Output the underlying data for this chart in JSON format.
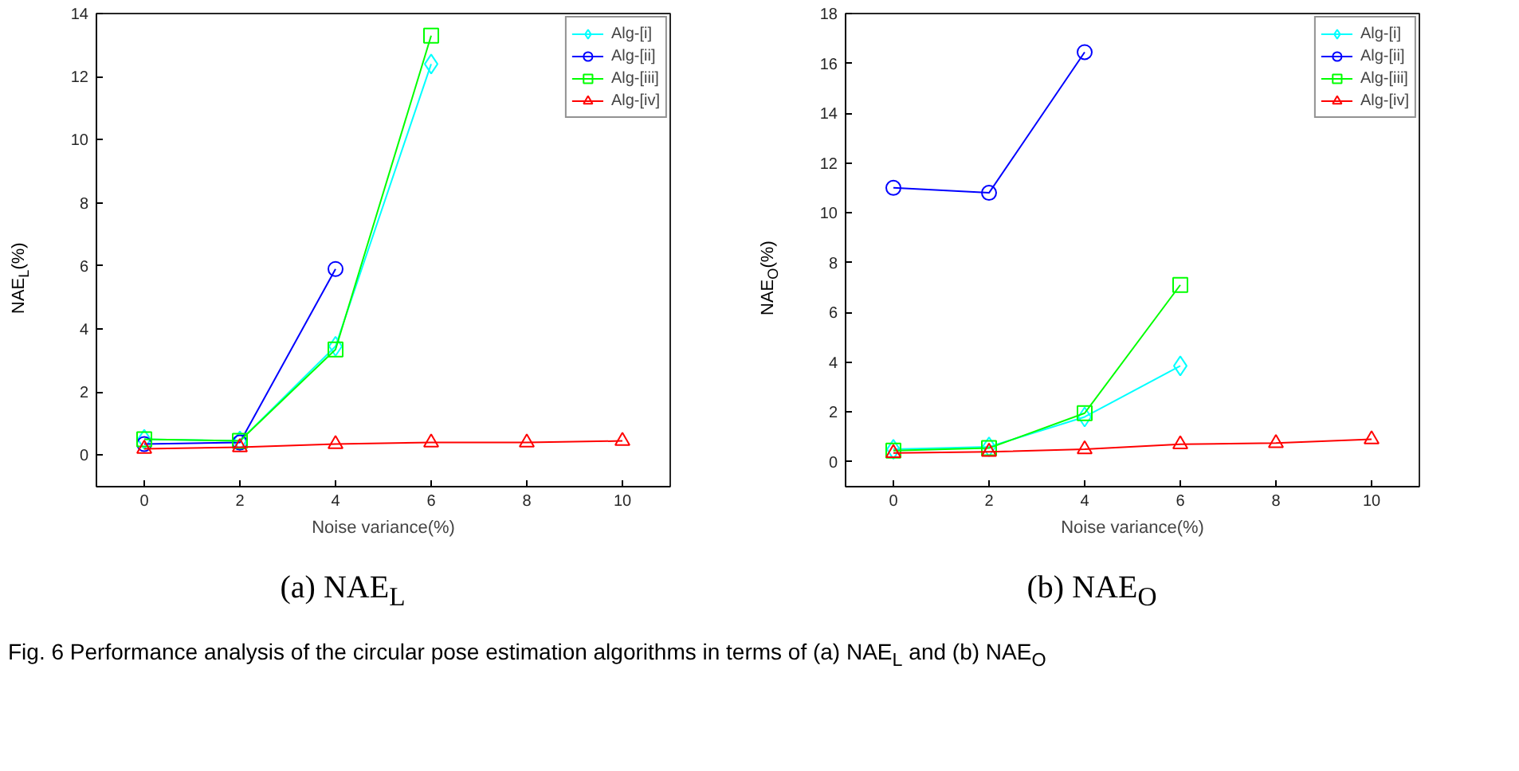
{
  "chart_data": [
    {
      "type": "line",
      "title": "(a) NAE$_{L}$",
      "xlabel": "Noise variance(%)",
      "ylabel": "NAE$_{L}$(%)",
      "xlim": [
        -1,
        11
      ],
      "xticks": [
        0,
        2,
        4,
        6,
        8,
        10
      ],
      "ylim": [
        -1,
        14
      ],
      "yticks": [
        0,
        2,
        4,
        6,
        8,
        10,
        12,
        14
      ],
      "grid": false,
      "legend": "top right",
      "line_style": "solid",
      "annotations": [
        "Fig. 6  Performance analysis of the circular pose estimation algorithms in terms of (a) NAE$_{L}$ and (b) NAE$_{O}$"
      ],
      "series": [
        {
          "name": "Alg-[i]",
          "color": "#00ffff",
          "marker": "diamond",
          "x": [
            0,
            2,
            4,
            6
          ],
          "values": [
            0.5,
            0.45,
            3.45,
            12.4
          ]
        },
        {
          "name": "Alg-[ii]",
          "color": "#0000ff",
          "marker": "circle",
          "x": [
            0,
            2,
            4
          ],
          "values": [
            0.35,
            0.4,
            5.9
          ]
        },
        {
          "name": "Alg-[iii]",
          "color": "#00ff00",
          "marker": "square",
          "x": [
            0,
            2,
            4,
            6
          ],
          "values": [
            0.5,
            0.45,
            3.35,
            13.3
          ]
        },
        {
          "name": "Alg-[iv]",
          "color": "#ff0000",
          "marker": "triangle",
          "x": [
            0,
            2,
            4,
            6,
            8,
            10
          ],
          "values": [
            0.2,
            0.25,
            0.35,
            0.4,
            0.4,
            0.45
          ]
        }
      ]
    },
    {
      "type": "line",
      "title": "(b) NAE$_{O}$",
      "xlabel": "Noise variance(%)",
      "ylabel": "NAE$_{O}$(%)",
      "xlim": [
        -1,
        11
      ],
      "xticks": [
        0,
        2,
        4,
        6,
        8,
        10
      ],
      "ylim": [
        -1,
        18
      ],
      "yticks": [
        0,
        2,
        4,
        6,
        8,
        10,
        12,
        14,
        16,
        18
      ],
      "grid": false,
      "legend": "top right",
      "line_style": "solid",
      "series": [
        {
          "name": "Alg-[i]",
          "color": "#00ffff",
          "marker": "diamond",
          "x": [
            0,
            2,
            4,
            6
          ],
          "values": [
            0.5,
            0.6,
            1.8,
            3.85
          ]
        },
        {
          "name": "Alg-[ii]",
          "color": "#0000ff",
          "marker": "circle",
          "x": [
            0,
            2,
            4
          ],
          "values": [
            11.0,
            10.8,
            16.45
          ]
        },
        {
          "name": "Alg-[iii]",
          "color": "#00ff00",
          "marker": "square",
          "x": [
            0,
            2,
            4,
            6
          ],
          "values": [
            0.45,
            0.55,
            1.95,
            7.1
          ]
        },
        {
          "name": "Alg-[iv]",
          "color": "#ff0000",
          "marker": "triangle",
          "x": [
            0,
            2,
            4,
            6,
            8,
            10
          ],
          "values": [
            0.35,
            0.4,
            0.5,
            0.7,
            0.75,
            0.9
          ]
        }
      ]
    }
  ]
}
